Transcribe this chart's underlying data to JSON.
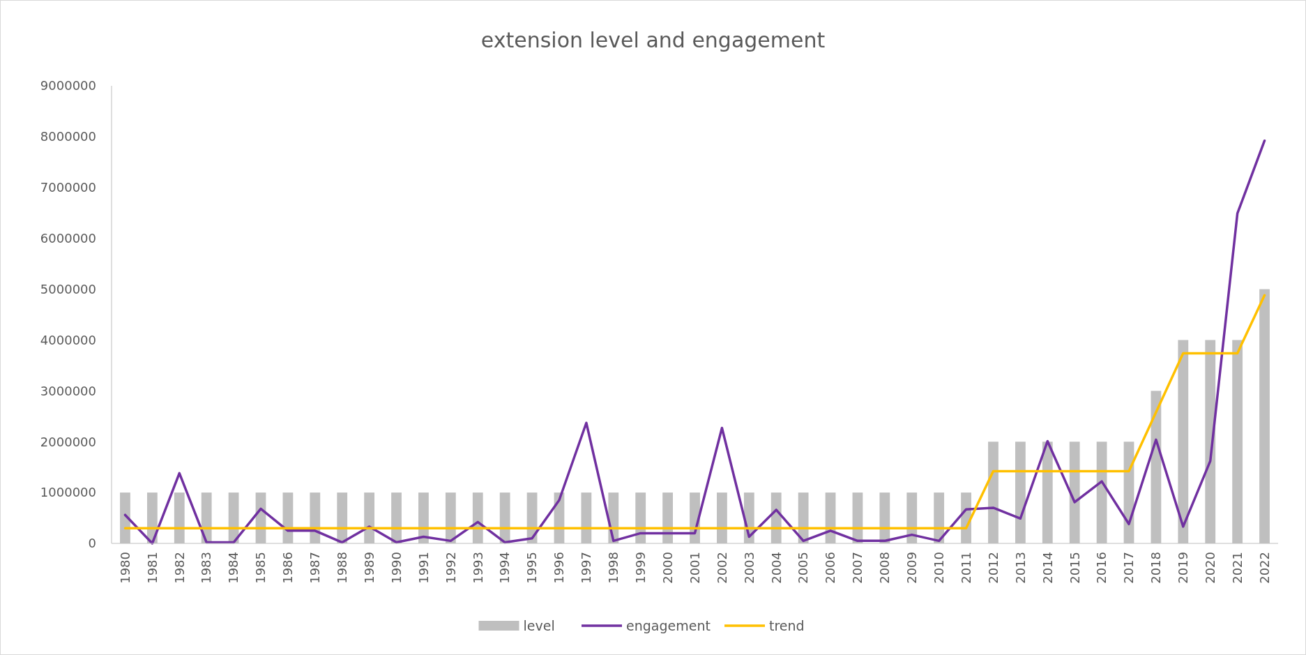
{
  "chart_data": {
    "type": "bar",
    "title": "extension level and engagement",
    "categories": [
      "1980",
      "1981",
      "1982",
      "1983",
      "1984",
      "1985",
      "1986",
      "1987",
      "1988",
      "1989",
      "1990",
      "1991",
      "1992",
      "1993",
      "1994",
      "1995",
      "1996",
      "1997",
      "1998",
      "1999",
      "2000",
      "2001",
      "2002",
      "2003",
      "2004",
      "2005",
      "2006",
      "2007",
      "2008",
      "2009",
      "2010",
      "2011",
      "2012",
      "2013",
      "2014",
      "2015",
      "2016",
      "2017",
      "2018",
      "2019",
      "2020",
      "2021",
      "2022"
    ],
    "series": [
      {
        "name": "level",
        "color": "#bfbfbf",
        "values": [
          1000000,
          1000000,
          1000000,
          1000000,
          1000000,
          1000000,
          1000000,
          1000000,
          1000000,
          1000000,
          1000000,
          1000000,
          1000000,
          1000000,
          1000000,
          1000000,
          1000000,
          1000000,
          1000000,
          1000000,
          1000000,
          1000000,
          1000000,
          1000000,
          1000000,
          1000000,
          1000000,
          1000000,
          1000000,
          1000000,
          1000000,
          1000000,
          2000000,
          2000000,
          2000000,
          2000000,
          2000000,
          2000000,
          3000000,
          4000000,
          4000000,
          4000000,
          5000000
        ]
      },
      {
        "name": "engagement",
        "type": "line",
        "color": "#7030a0",
        "values": [
          560000,
          0,
          1380000,
          20000,
          20000,
          680000,
          250000,
          250000,
          20000,
          330000,
          20000,
          130000,
          50000,
          420000,
          20000,
          100000,
          850000,
          2370000,
          50000,
          200000,
          200000,
          200000,
          2270000,
          130000,
          660000,
          50000,
          250000,
          50000,
          50000,
          170000,
          50000,
          670000,
          700000,
          490000,
          2010000,
          810000,
          1220000,
          380000,
          2040000,
          330000,
          1620000,
          6490000,
          7920000
        ]
      },
      {
        "name": "trend",
        "type": "line",
        "color": "#ffc000",
        "values": [
          300000,
          300000,
          300000,
          300000,
          300000,
          300000,
          300000,
          300000,
          300000,
          300000,
          300000,
          300000,
          300000,
          300000,
          300000,
          300000,
          300000,
          300000,
          300000,
          300000,
          300000,
          300000,
          300000,
          300000,
          300000,
          300000,
          300000,
          300000,
          300000,
          300000,
          300000,
          300000,
          1420000,
          1420000,
          1420000,
          1420000,
          1420000,
          1420000,
          2580000,
          3740000,
          3740000,
          3740000,
          4880000
        ]
      }
    ],
    "ylim": [
      0,
      9000000
    ],
    "yticks": [
      0,
      1000000,
      2000000,
      3000000,
      4000000,
      5000000,
      6000000,
      7000000,
      8000000,
      9000000
    ],
    "grid": false,
    "legend": "bottom",
    "line_style": "solid",
    "marker": "none"
  }
}
